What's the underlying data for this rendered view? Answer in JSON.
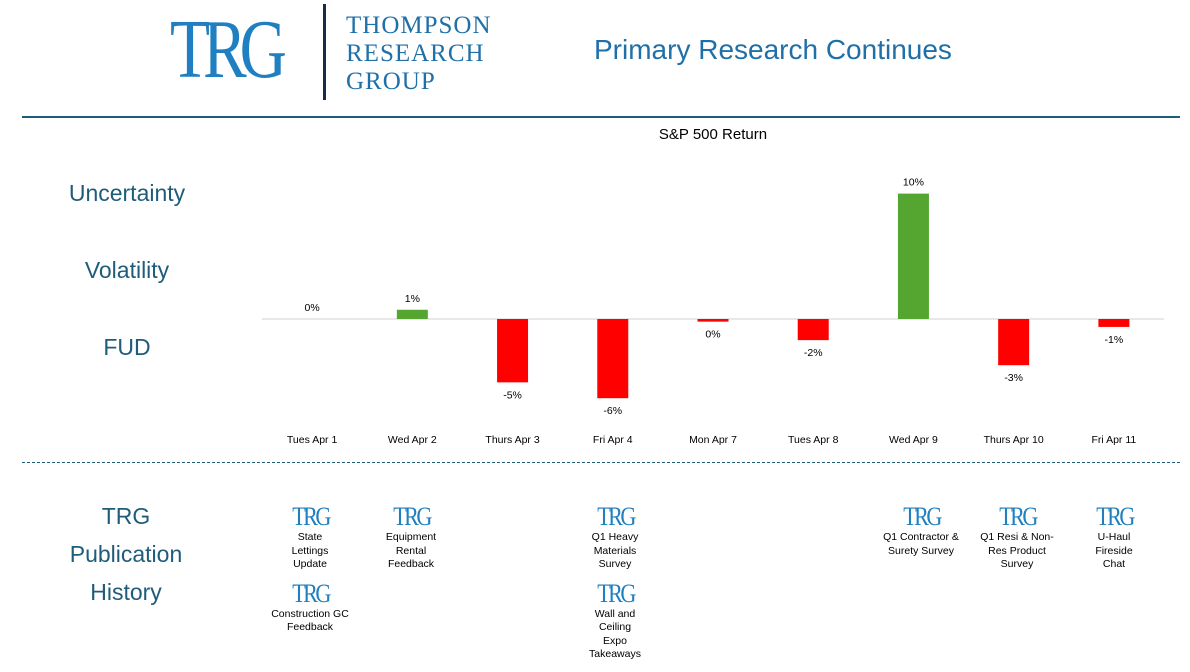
{
  "header": {
    "logo": {
      "mark": "TRG",
      "line1": "THOMPSON",
      "line2": "RESEARCH",
      "line3": "GROUP"
    },
    "title": "Primary Research Continues"
  },
  "side_labels": {
    "uncertainty": "Uncertainty",
    "volatility": "Volatility",
    "fud": "FUD",
    "history_1": "TRG",
    "history_2": "Publication",
    "history_3": "History"
  },
  "colors": {
    "positive": "#55a630",
    "negative": "#ff0000",
    "accent": "#1f5c7a"
  },
  "chart_data": {
    "type": "bar",
    "title": "S&P 500 Return",
    "categories": [
      "Tues Apr 1",
      "Wed Apr 2",
      "Thurs Apr 3",
      "Fri Apr 4",
      "Mon Apr 7",
      "Tues Apr 8",
      "Wed Apr 9",
      "Thurs Apr 10",
      "Fri Apr 11"
    ],
    "values": [
      0.0,
      0.7,
      -4.8,
      -6.0,
      -0.2,
      -1.6,
      9.5,
      -3.5,
      -0.6
    ],
    "labels": [
      "0%",
      "1%",
      "-5%",
      "-6%",
      "0%",
      "-2%",
      "10%",
      "-3%",
      "-1%"
    ],
    "xlabel": "",
    "ylabel": "",
    "ylim": [
      -7,
      11
    ],
    "grid": false,
    "legend": "none"
  },
  "publications": [
    {
      "logo": "TRG",
      "day": "Tues Apr 1",
      "text": "State Lettings Update"
    },
    {
      "logo": "TRG",
      "day": "Tues Apr 1",
      "text": "Construction GC Feedback"
    },
    {
      "logo": "TRG",
      "day": "Wed Apr 2",
      "text": "Equipment Rental Feedback"
    },
    {
      "logo": "TRG",
      "day": "Fri Apr 4",
      "text": "Q1 Heavy Materials Survey"
    },
    {
      "logo": "TRG",
      "day": "Fri Apr 4",
      "text": "Wall and Ceiling Expo Takeaways"
    },
    {
      "logo": "TRG",
      "day": "Wed Apr 9",
      "text": "Q1 Contractor & Surety Survey"
    },
    {
      "logo": "TRG",
      "day": "Thurs Apr 10",
      "text": "Q1 Resi & Non-Res Product Survey"
    },
    {
      "logo": "TRG",
      "day": "Fri Apr 11",
      "text": "U-Haul Fireside Chat"
    }
  ]
}
